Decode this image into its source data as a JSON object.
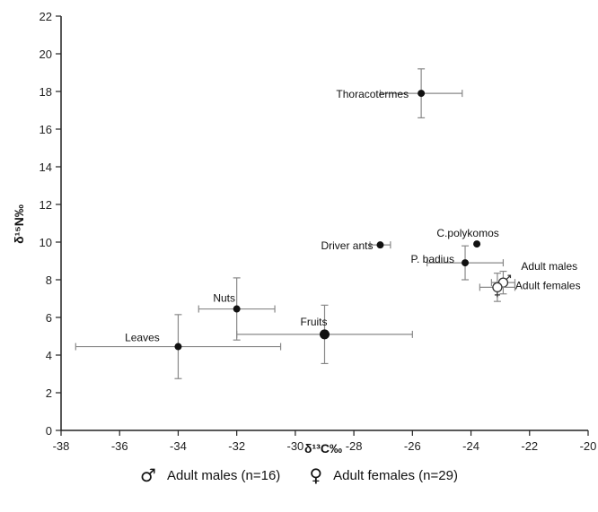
{
  "chart_data": {
    "type": "scatter",
    "xlabel": "δ¹³C‰",
    "ylabel": "δ¹⁵N‰",
    "xlim": [
      -38,
      -20
    ],
    "ylim": [
      0,
      22
    ],
    "x_ticks": [
      -38,
      -36,
      -34,
      -32,
      -30,
      -28,
      -26,
      -24,
      -22,
      -20
    ],
    "y_ticks": [
      0,
      2,
      4,
      6,
      8,
      10,
      12,
      14,
      16,
      18,
      20,
      22
    ],
    "grid": false,
    "points": [
      {
        "label": "Thoracotermes",
        "x": -25.7,
        "y": 17.9,
        "xerr": 1.4,
        "yerr": 1.3
      },
      {
        "label": "Driver ants",
        "x": -27.1,
        "y": 9.85,
        "xerr": 0.35,
        "yerr": 0
      },
      {
        "label": "C.polykomos",
        "x": -23.8,
        "y": 9.9,
        "xerr": 0,
        "yerr": 0
      },
      {
        "label": "P. badius",
        "x": -24.2,
        "y": 8.9,
        "xerr": 1.3,
        "yerr": 0.9
      },
      {
        "label": "Nuts",
        "x": -32.0,
        "y": 6.45,
        "xerr": 1.3,
        "yerr": 1.65
      },
      {
        "label": "Fruits",
        "x": -29.0,
        "y": 5.1,
        "xerr": 3.0,
        "yerr": 1.55
      },
      {
        "label": "Leaves",
        "x": -34.0,
        "y": 4.45,
        "xerr": 3.5,
        "yerr": 1.7
      },
      {
        "label": "Adult males",
        "x": -22.9,
        "y": 7.85,
        "xerr": 0.4,
        "yerr": 0.6,
        "marker": "male"
      },
      {
        "label": "Adult females",
        "x": -23.1,
        "y": 7.6,
        "xerr": 0.6,
        "yerr": 0.75,
        "marker": "female"
      }
    ]
  },
  "legend": {
    "males_label": "Adult males (n=16)",
    "females_label": "Adult females (n=29)",
    "males_symbol": "♂",
    "females_symbol": "♀"
  }
}
